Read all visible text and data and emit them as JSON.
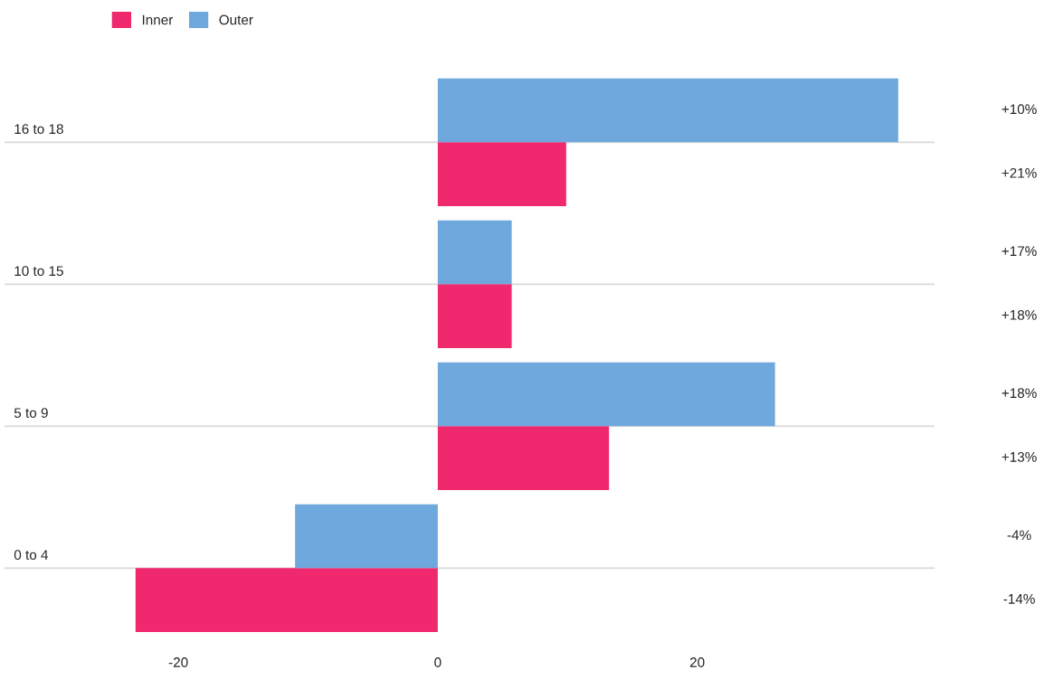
{
  "chart_data": {
    "type": "bar",
    "orientation": "horizontal",
    "categories": [
      "16 to 18",
      "10 to 15",
      "5 to 9",
      "0 to 4"
    ],
    "series": [
      {
        "name": "Inner",
        "color": "#f0286e",
        "values": [
          9.9,
          5.7,
          13.2,
          -23.3
        ]
      },
      {
        "name": "Outer",
        "color": "#6fa8dc",
        "values": [
          35.5,
          5.7,
          26.0,
          -11.0
        ]
      }
    ],
    "annotations": [
      "+10%",
      "+21%",
      "+17%",
      "+18%",
      "+18%",
      "+13%",
      "-4%",
      "-14%"
    ],
    "xlim": [
      -33.4,
      38.3
    ],
    "xticks": [
      -20,
      0,
      20
    ],
    "grid": "y",
    "legend": "top left"
  }
}
